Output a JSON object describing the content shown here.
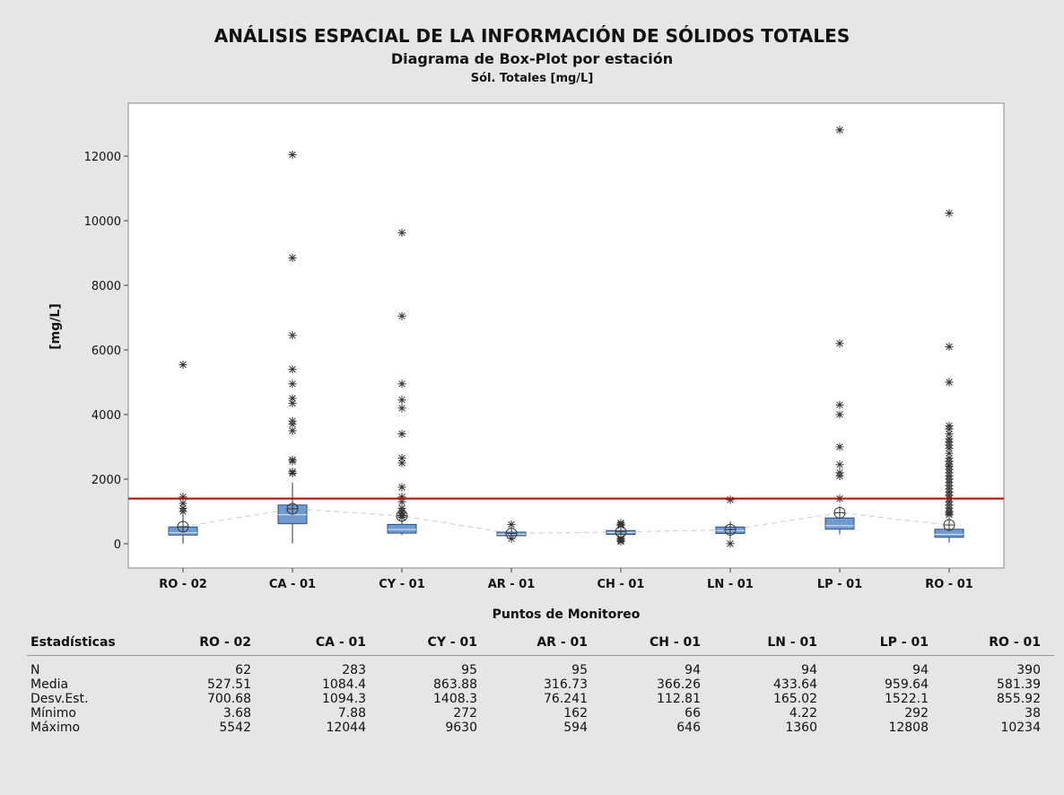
{
  "titles": {
    "main": "ANÁLISIS ESPACIAL DE LA INFORMACIÓN DE SÓLIDOS TOTALES",
    "sub": "Diagrama de Box-Plot por estación",
    "var": "Sól. Totales [mg/L]"
  },
  "colors": {
    "box": "#6f9bd1",
    "box_edge": "#2f4f7f",
    "ref_line": "#c00000",
    "mean_line": "#d4d4d4",
    "background": "#e6e6e6",
    "plot_bg": "#ffffff"
  },
  "chart_data": {
    "type": "boxplot",
    "title": "ANÁLISIS ESPACIAL DE LA INFORMACIÓN DE SÓLIDOS TOTALES",
    "subtitle": "Diagrama de Box-Plot por estación",
    "variable": "Sól. Totales [mg/L]",
    "xlabel": "Puntos de Monitoreo",
    "ylabel": "[mg/L]",
    "ylim": [
      -800,
      13300
    ],
    "yticks": [
      0,
      2000,
      4000,
      6000,
      8000,
      10000,
      12000
    ],
    "reference_line": 1400,
    "categories": [
      "RO - 02",
      "CA - 01",
      "CY - 01",
      "AR - 01",
      "CH - 01",
      "LN - 01",
      "LP - 01",
      "RO - 01"
    ],
    "boxes": [
      {
        "q1": 270,
        "median": 340,
        "q3": 520,
        "whisker_low": 4,
        "whisker_high": 900,
        "mean": 528,
        "outliers": [
          1000,
          1100,
          1250,
          1450,
          5542
        ]
      },
      {
        "q1": 620,
        "median": 900,
        "q3": 1200,
        "whisker_low": 8,
        "whisker_high": 1900,
        "mean": 1084,
        "outliers": [
          2180,
          2230,
          2550,
          2600,
          3500,
          3700,
          3800,
          4350,
          4500,
          4950,
          5400,
          6450,
          8850,
          12044
        ]
      },
      {
        "q1": 330,
        "median": 440,
        "q3": 600,
        "whisker_low": 272,
        "whisker_high": 750,
        "mean": 864,
        "outliers": [
          820,
          880,
          950,
          1000,
          1100,
          1300,
          1450,
          1750,
          2500,
          2650,
          3400,
          4200,
          4450,
          4950,
          7050,
          9630
        ]
      },
      {
        "q1": 250,
        "median": 300,
        "q3": 360,
        "whisker_low": 200,
        "whisker_high": 470,
        "mean": 317,
        "outliers": [
          162,
          594
        ]
      },
      {
        "q1": 290,
        "median": 350,
        "q3": 410,
        "whisker_low": 180,
        "whisker_high": 500,
        "mean": 366,
        "outliers": [
          66,
          100,
          140,
          170,
          560,
          600,
          646
        ]
      },
      {
        "q1": 320,
        "median": 410,
        "q3": 520,
        "whisker_low": 150,
        "whisker_high": 700,
        "mean": 434,
        "outliers": [
          4.22,
          1360
        ]
      },
      {
        "q1": 450,
        "median": 560,
        "q3": 800,
        "whisker_low": 292,
        "whisker_high": 1150,
        "mean": 960,
        "outliers": [
          1400,
          2100,
          2200,
          2450,
          3000,
          4000,
          4300,
          6200,
          12808
        ]
      },
      {
        "q1": 200,
        "median": 290,
        "q3": 450,
        "whisker_low": 38,
        "whisker_high": 800,
        "mean": 581,
        "outliers": [
          900,
          950,
          1000,
          1100,
          1200,
          1300,
          1400,
          1500,
          1600,
          1700,
          1800,
          1900,
          2000,
          2100,
          2200,
          2300,
          2400,
          2450,
          2550,
          2650,
          2800,
          2950,
          3050,
          3150,
          3250,
          3400,
          3550,
          3650,
          5000,
          6100,
          10234
        ]
      }
    ]
  },
  "stats": {
    "header": "Estadísticas",
    "columns": [
      "RO - 02",
      "CA - 01",
      "CY - 01",
      "AR - 01",
      "CH - 01",
      "LN - 01",
      "LP - 01",
      "RO - 01"
    ],
    "rows": [
      {
        "label": "N",
        "values": [
          "62",
          "283",
          "95",
          "95",
          "94",
          "94",
          "94",
          "390"
        ]
      },
      {
        "label": "Media",
        "values": [
          "527.51",
          "1084.4",
          "863.88",
          "316.73",
          "366.26",
          "433.64",
          "959.64",
          "581.39"
        ]
      },
      {
        "label": "Desv.Est.",
        "values": [
          "700.68",
          "1094.3",
          "1408.3",
          "76.241",
          "112.81",
          "165.02",
          "1522.1",
          "855.92"
        ]
      },
      {
        "label": "Mínimo",
        "values": [
          "3.68",
          "7.88",
          "272",
          "162",
          "66",
          "4.22",
          "292",
          "38"
        ]
      },
      {
        "label": "Máximo",
        "values": [
          "5542",
          "12044",
          "9630",
          "594",
          "646",
          "1360",
          "12808",
          "10234"
        ]
      }
    ]
  }
}
